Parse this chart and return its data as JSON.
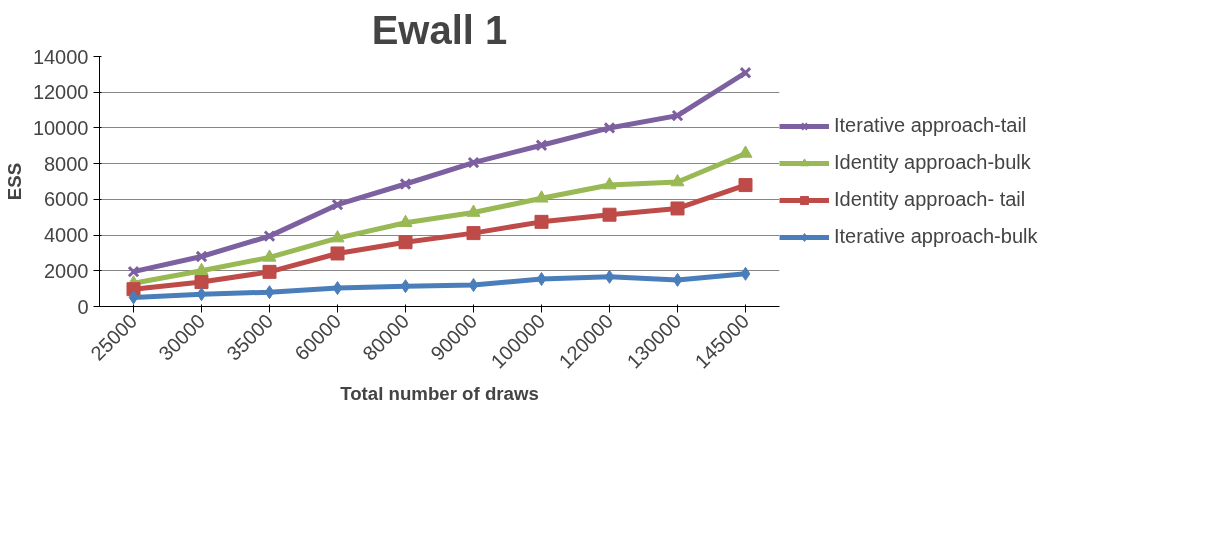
{
  "chart_data": {
    "type": "line",
    "title": "Ewall 1",
    "xlabel": "Total number of draws",
    "ylabel": "ESS",
    "categories": [
      "25000",
      "30000",
      "35000",
      "60000",
      "80000",
      "90000",
      "100000",
      "120000",
      "130000",
      "145000"
    ],
    "ylim": [
      0,
      14000
    ],
    "yticks": [
      0,
      2000,
      4000,
      6000,
      8000,
      10000,
      12000,
      14000
    ],
    "grid": "y",
    "legend": "right",
    "line_style": "solid",
    "series": [
      {
        "name": "Iterative approach-tail",
        "color": "#7d60a0",
        "marker": "cross",
        "values": [
          1950,
          2800,
          3940,
          5700,
          6860,
          8060,
          9030,
          10000,
          10690,
          13090
        ]
      },
      {
        "name": "Identity approach-bulk",
        "color": "#98b954",
        "marker": "triangle",
        "values": [
          1300,
          2000,
          2750,
          3830,
          4690,
          5260,
          6060,
          6800,
          6970,
          8570
        ]
      },
      {
        "name": "Identity approach- tail",
        "color": "#be4b48",
        "marker": "square",
        "values": [
          970,
          1370,
          1940,
          2970,
          3600,
          4110,
          4740,
          5140,
          5490,
          6800
        ]
      },
      {
        "name": "Iterative approach-bulk",
        "color": "#4a7ebb",
        "marker": "diamond",
        "values": [
          510,
          690,
          800,
          1030,
          1140,
          1200,
          1540,
          1660,
          1490,
          1830
        ]
      }
    ]
  }
}
